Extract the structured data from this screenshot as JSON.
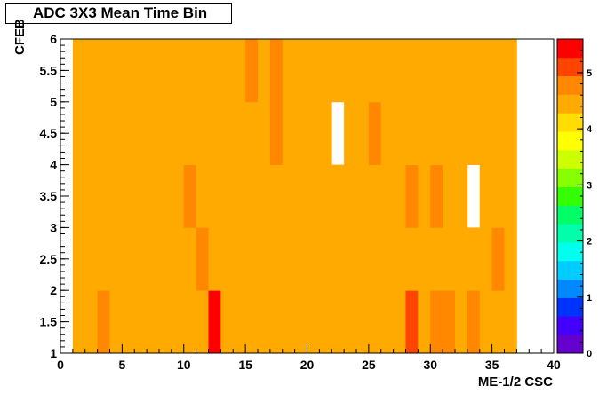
{
  "chart_data": {
    "type": "heatmap",
    "title": "ADC 3X3 Mean Time Bin",
    "xlabel": "ME-1/2 CSC",
    "ylabel": "CFEB",
    "xlim": [
      0,
      40
    ],
    "ylim": [
      1,
      6
    ],
    "x_ticks": [
      "0",
      "5",
      "10",
      "15",
      "20",
      "25",
      "30",
      "35",
      "40"
    ],
    "y_ticks": [
      "1",
      "1.5",
      "2",
      "2.5",
      "3",
      "3.5",
      "4",
      "4.5",
      "5",
      "5.5",
      "6"
    ],
    "colorbar": {
      "min": 0,
      "max": 5.6,
      "ticks": [
        "0",
        "1",
        "2",
        "3",
        "4",
        "5"
      ]
    },
    "row_bounds": [
      1,
      2,
      3,
      4,
      5,
      6
    ],
    "rows": [
      [
        4.6,
        4.4,
        4.9,
        4.4,
        4.6,
        4.4,
        4.4,
        4.4,
        4.4,
        4.6,
        4.6,
        5.5,
        4.4,
        4.6,
        4.4,
        4.4,
        4.4,
        4.6,
        4.4,
        4.4,
        4.4,
        4.4,
        4.4,
        4.6,
        4.6,
        4.6,
        4.4,
        5.2,
        4.4,
        4.9,
        4.9,
        4.6,
        4.9,
        4.4,
        4.6,
        4.6
      ],
      [
        4.4,
        4.4,
        4.4,
        4.4,
        4.6,
        4.4,
        4.4,
        4.4,
        4.4,
        4.6,
        4.9,
        4.4,
        4.4,
        4.4,
        4.4,
        4.4,
        4.4,
        4.4,
        4.4,
        4.4,
        4.4,
        4.4,
        4.4,
        4.6,
        4.4,
        4.4,
        4.4,
        4.4,
        4.4,
        4.4,
        4.4,
        4.4,
        4.6,
        4.6,
        4.9,
        4.4
      ],
      [
        4.6,
        4.4,
        4.6,
        4.4,
        4.6,
        4.4,
        4.4,
        4.6,
        4.4,
        4.9,
        4.6,
        4.6,
        4.6,
        4.4,
        4.6,
        4.6,
        4.4,
        4.6,
        4.4,
        4.6,
        4.6,
        4.4,
        4.6,
        4.6,
        4.4,
        4.6,
        4.4,
        4.9,
        4.4,
        4.9,
        4.4,
        4.4,
        null,
        4.6,
        4.6,
        4.4
      ],
      [
        4.4,
        4.6,
        4.4,
        4.4,
        4.6,
        4.4,
        4.4,
        4.4,
        4.4,
        4.4,
        4.6,
        4.4,
        4.4,
        4.4,
        4.4,
        4.4,
        4.9,
        4.4,
        4.6,
        4.6,
        4.6,
        null,
        4.6,
        4.4,
        4.9,
        4.4,
        4.6,
        4.6,
        4.6,
        4.6,
        4.4,
        4.4,
        4.6,
        4.4,
        4.4,
        4.4
      ],
      [
        4.6,
        4.4,
        4.6,
        4.4,
        4.6,
        4.4,
        4.4,
        4.4,
        4.6,
        4.4,
        4.6,
        4.4,
        4.6,
        4.6,
        4.9,
        4.4,
        4.9,
        4.4,
        4.4,
        4.4,
        4.4,
        4.4,
        4.4,
        4.4,
        4.4,
        4.4,
        4.4,
        4.4,
        4.6,
        4.4,
        4.4,
        4.4,
        4.6,
        4.4,
        4.4,
        4.4
      ]
    ]
  }
}
